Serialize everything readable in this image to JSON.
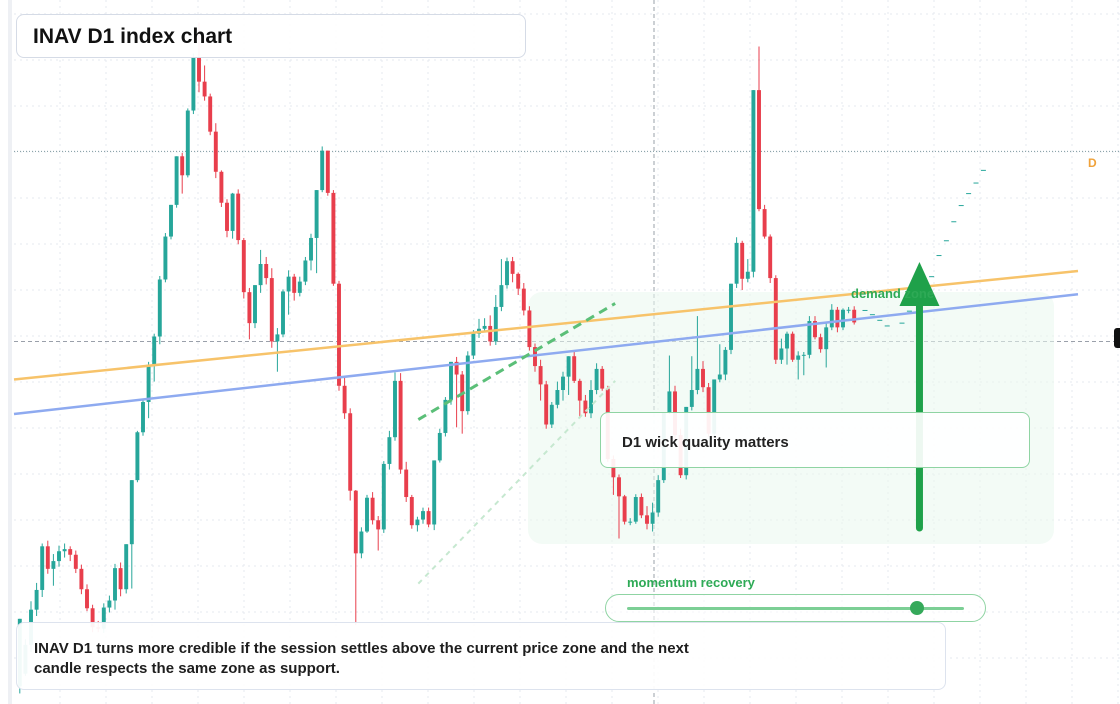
{
  "title": "INAV D1 index chart",
  "note": "D1 wick quality matters",
  "caption": "INAV D1 turns more credible if the session settles above the current price zone and the next candle respects the same zone as support.",
  "zones": {
    "demand": "demand zone",
    "momentum": "momentum recovery"
  },
  "momentum_level": 0.86,
  "edge_marker": "D",
  "colors": {
    "up": "#26a69a",
    "down": "#e83e4c",
    "orange_line": "#f7c36a",
    "blue_line": "#8eaaf0",
    "green_dash": "#5bbf78",
    "arrow": "#1fa14a",
    "zone_fill": "#eaf7ee",
    "grid": "#e6e9ef"
  },
  "chart_data": {
    "type": "candlestick",
    "title": "INAV D1 index chart",
    "ylim": [
      0,
      100
    ],
    "current_price": 51.5,
    "resistance_level": 78.5,
    "candles": [
      [
        2.5,
        12.1,
        12.1,
        1.5
      ],
      [
        4.3,
        8.4,
        9.2,
        4.0
      ],
      [
        8.4,
        13.4,
        14.6,
        7.4
      ],
      [
        13.4,
        16.2,
        17.2,
        12.5
      ],
      [
        16.2,
        22.4,
        22.8,
        15.2
      ],
      [
        22.4,
        19.2,
        23.2,
        18.5
      ],
      [
        19.2,
        20.3,
        21.3,
        16.8
      ],
      [
        20.3,
        21.7,
        22.5,
        19.5
      ],
      [
        21.7,
        22.0,
        22.8,
        20.8
      ],
      [
        22.0,
        21.2,
        22.4,
        20.3
      ],
      [
        21.2,
        19.2,
        21.8,
        18.6
      ],
      [
        19.2,
        16.3,
        19.8,
        15.6
      ],
      [
        16.3,
        13.6,
        17.0,
        13.2
      ],
      [
        13.6,
        10.9,
        14.1,
        10.2
      ],
      [
        10.9,
        10.7,
        11.8,
        10.2
      ],
      [
        10.7,
        13.7,
        14.3,
        10.1
      ],
      [
        13.7,
        14.7,
        15.4,
        13.0
      ],
      [
        14.7,
        19.3,
        19.9,
        13.4
      ],
      [
        19.3,
        16.3,
        20.1,
        15.3
      ],
      [
        16.3,
        22.7,
        22.7,
        15.7
      ],
      [
        22.7,
        31.8,
        31.8,
        16.4
      ],
      [
        31.8,
        38.6,
        38.8,
        31.5
      ],
      [
        38.6,
        42.9,
        43.2,
        38.1
      ],
      [
        42.9,
        48.2,
        48.6,
        40.6
      ],
      [
        48.2,
        52.2,
        52.6,
        45.8
      ],
      [
        52.2,
        60.3,
        60.8,
        51.1
      ],
      [
        60.3,
        66.4,
        66.9,
        59.9
      ],
      [
        66.4,
        70.9,
        70.9,
        66.0
      ],
      [
        70.9,
        77.8,
        77.8,
        70.5
      ],
      [
        77.8,
        75.1,
        78.3,
        72.5
      ],
      [
        75.1,
        84.3,
        84.6,
        74.8
      ],
      [
        84.3,
        91.8,
        92.4,
        83.8
      ],
      [
        91.8,
        88.4,
        96.8,
        86.9
      ],
      [
        88.4,
        86.3,
        90.7,
        85.7
      ],
      [
        86.3,
        81.3,
        86.7,
        80.8
      ],
      [
        81.3,
        75.6,
        82.5,
        74.7
      ],
      [
        75.6,
        71.2,
        75.8,
        70.6
      ],
      [
        71.2,
        67.2,
        71.7,
        66.3
      ],
      [
        67.2,
        72.5,
        72.6,
        66.1
      ],
      [
        72.5,
        65.9,
        73.1,
        65.3
      ],
      [
        65.9,
        58.5,
        66.2,
        57.6
      ],
      [
        58.5,
        54.1,
        59.1,
        51.8
      ],
      [
        54.1,
        59.5,
        59.5,
        53.4
      ],
      [
        59.5,
        62.5,
        64.5,
        58.4
      ],
      [
        62.5,
        60.5,
        63.5,
        59.6
      ],
      [
        60.5,
        51.5,
        61.9,
        50.6
      ],
      [
        51.5,
        52.5,
        53.4,
        47.2
      ],
      [
        52.5,
        58.6,
        58.9,
        52.1
      ],
      [
        58.6,
        60.7,
        61.6,
        55.3
      ],
      [
        60.7,
        58.4,
        61.1,
        57.3
      ],
      [
        58.4,
        60.0,
        60.7,
        57.9
      ],
      [
        60.0,
        63.0,
        63.5,
        59.5
      ],
      [
        63.0,
        66.2,
        66.8,
        61.6
      ],
      [
        66.2,
        73.0,
        73.0,
        61.2
      ],
      [
        73.0,
        78.6,
        79.2,
        72.7
      ],
      [
        78.6,
        72.6,
        78.6,
        72.2
      ],
      [
        72.6,
        59.7,
        73.0,
        59.4
      ],
      [
        59.7,
        45.2,
        60.1,
        44.5
      ],
      [
        45.2,
        41.3,
        46.5,
        40.5
      ],
      [
        41.3,
        30.3,
        42.0,
        28.9
      ],
      [
        30.3,
        21.4,
        30.4,
        11.2
      ],
      [
        21.4,
        24.5,
        25.1,
        20.7
      ],
      [
        24.5,
        29.3,
        29.7,
        24.3
      ],
      [
        29.3,
        26.1,
        30.1,
        25.5
      ],
      [
        26.1,
        24.8,
        26.7,
        21.8
      ],
      [
        24.8,
        34.1,
        34.5,
        24.3
      ],
      [
        34.1,
        37.9,
        38.8,
        33.3
      ],
      [
        37.9,
        45.9,
        47.1,
        37.4
      ],
      [
        45.9,
        33.3,
        47.0,
        32.7
      ],
      [
        33.3,
        29.4,
        34.4,
        28.7
      ],
      [
        29.4,
        25.4,
        29.7,
        24.9
      ],
      [
        25.4,
        26.2,
        26.6,
        24.5
      ],
      [
        26.2,
        27.4,
        27.9,
        25.6
      ],
      [
        27.4,
        25.5,
        27.9,
        25.1
      ],
      [
        25.5,
        34.6,
        34.6,
        24.7
      ],
      [
        34.6,
        38.5,
        39.1,
        34.3
      ],
      [
        38.5,
        43.2,
        43.6,
        38.0
      ],
      [
        43.2,
        48.6,
        48.6,
        42.5
      ],
      [
        48.6,
        46.8,
        49.3,
        39.3
      ],
      [
        46.8,
        41.6,
        47.3,
        38.4
      ],
      [
        41.6,
        49.5,
        50.1,
        41.1
      ],
      [
        49.5,
        52.6,
        53.1,
        49.0
      ],
      [
        52.6,
        53.3,
        54.7,
        52.0
      ],
      [
        53.3,
        53.7,
        54.8,
        52.8
      ],
      [
        53.7,
        51.5,
        55.2,
        50.9
      ],
      [
        51.5,
        56.4,
        58.1,
        51.0
      ],
      [
        56.4,
        59.5,
        63.2,
        55.8
      ],
      [
        59.5,
        62.9,
        63.4,
        59.0
      ],
      [
        62.9,
        61.1,
        63.5,
        59.9
      ],
      [
        61.1,
        59.0,
        61.3,
        58.1
      ],
      [
        59.0,
        55.9,
        59.8,
        55.2
      ],
      [
        55.9,
        50.7,
        56.5,
        50.2
      ],
      [
        50.7,
        48.0,
        51.2,
        47.2
      ],
      [
        48.0,
        45.4,
        48.9,
        43.1
      ],
      [
        45.4,
        39.7,
        45.9,
        39.1
      ],
      [
        39.7,
        42.5,
        42.9,
        39.2
      ],
      [
        42.5,
        44.6,
        45.8,
        42.0
      ],
      [
        44.6,
        46.5,
        47.2,
        43.1
      ],
      [
        46.5,
        49.4,
        49.4,
        43.9
      ],
      [
        49.4,
        45.9,
        50.0,
        45.6
      ],
      [
        45.9,
        43.1,
        46.2,
        40.6
      ],
      [
        43.1,
        41.3,
        43.9,
        40.8
      ],
      [
        41.3,
        44.6,
        46.0,
        40.6
      ],
      [
        44.6,
        47.6,
        48.4,
        44.0
      ],
      [
        47.6,
        44.8,
        48.0,
        44.5
      ],
      [
        44.8,
        34.8,
        45.2,
        34.4
      ],
      [
        34.8,
        32.2,
        35.3,
        29.7
      ],
      [
        32.2,
        29.5,
        32.6,
        23.5
      ],
      [
        29.5,
        25.9,
        29.7,
        25.5
      ],
      [
        25.9,
        25.9,
        26.4,
        25.4
      ],
      [
        25.9,
        29.4,
        29.8,
        25.6
      ],
      [
        29.4,
        26.8,
        29.9,
        26.4
      ],
      [
        26.8,
        25.6,
        28.1,
        24.8
      ],
      [
        25.6,
        27.2,
        28.6,
        24.5
      ],
      [
        27.2,
        31.8,
        32.5,
        26.6
      ],
      [
        31.8,
        41.4,
        41.4,
        31.4
      ],
      [
        41.4,
        44.4,
        49.5,
        41.2
      ],
      [
        44.4,
        38.2,
        45.2,
        37.4
      ],
      [
        38.2,
        32.5,
        39.1,
        32.1
      ],
      [
        32.5,
        42.2,
        42.2,
        31.9
      ],
      [
        42.2,
        44.6,
        49.4,
        41.7
      ],
      [
        44.6,
        47.6,
        55.1,
        44.0
      ],
      [
        47.6,
        45.0,
        48.7,
        44.3
      ],
      [
        45.0,
        38.4,
        45.6,
        38.0
      ],
      [
        38.4,
        46.1,
        46.1,
        37.9
      ],
      [
        46.1,
        46.8,
        51.1,
        45.7
      ],
      [
        46.8,
        50.3,
        50.7,
        46.0
      ],
      [
        50.3,
        59.7,
        59.7,
        49.7
      ],
      [
        59.7,
        65.5,
        66.3,
        59.1
      ],
      [
        65.5,
        60.4,
        65.8,
        58.8
      ],
      [
        60.4,
        61.4,
        63.2,
        59.9
      ],
      [
        61.4,
        87.2,
        87.2,
        60.6
      ],
      [
        87.2,
        70.3,
        93.4,
        70.0
      ],
      [
        70.3,
        66.4,
        70.9,
        66.1
      ],
      [
        66.4,
        60.5,
        66.7,
        59.8
      ],
      [
        60.5,
        48.9,
        60.9,
        48.3
      ],
      [
        48.9,
        50.5,
        51.9,
        48.3
      ],
      [
        50.5,
        52.6,
        52.9,
        48.2
      ],
      [
        52.6,
        48.9,
        52.9,
        48.6
      ],
      [
        48.9,
        49.5,
        50.1,
        46.1
      ],
      [
        49.5,
        49.6,
        50.0,
        46.7
      ],
      [
        49.6,
        54.4,
        55.1,
        49.1
      ],
      [
        54.4,
        52.1,
        55.1,
        51.8
      ],
      [
        52.1,
        50.4,
        52.6,
        49.9
      ],
      [
        50.4,
        53.5,
        54.1,
        47.8
      ],
      [
        53.5,
        56.0,
        56.8,
        53.1
      ],
      [
        56.0,
        53.5,
        56.4,
        52.8
      ],
      [
        53.5,
        56.0,
        56.2,
        53.1
      ],
      [
        56.0,
        56.0,
        56.4,
        55.5
      ],
      [
        56.0,
        54.2,
        56.5,
        53.9
      ]
    ],
    "forecast_ticks": [
      [
        55.9
      ],
      [
        55.3
      ],
      [
        54.5
      ],
      [
        53.7
      ],
      [
        55.3
      ],
      [
        54.1
      ],
      [
        55.8
      ],
      [
        57.3
      ],
      [
        59.0
      ],
      [
        60.7
      ],
      [
        63.7
      ],
      [
        65.8
      ],
      [
        68.5
      ],
      [
        70.8
      ],
      [
        72.5
      ],
      [
        74.0
      ],
      [
        75.8
      ]
    ],
    "trendlines": {
      "orange": {
        "from": [
          0,
          46.1
        ],
        "to": [
          100,
          61.5
        ]
      },
      "blue": {
        "from": [
          0,
          41.2
        ],
        "to": [
          100,
          58.2
        ]
      }
    },
    "channel_dashes": [
      {
        "from": [
          38.0,
          40.4
        ],
        "to": [
          56.5,
          56.9
        ]
      },
      {
        "from": [
          38.0,
          17.1
        ],
        "to": [
          56.5,
          45.9
        ]
      }
    ]
  }
}
